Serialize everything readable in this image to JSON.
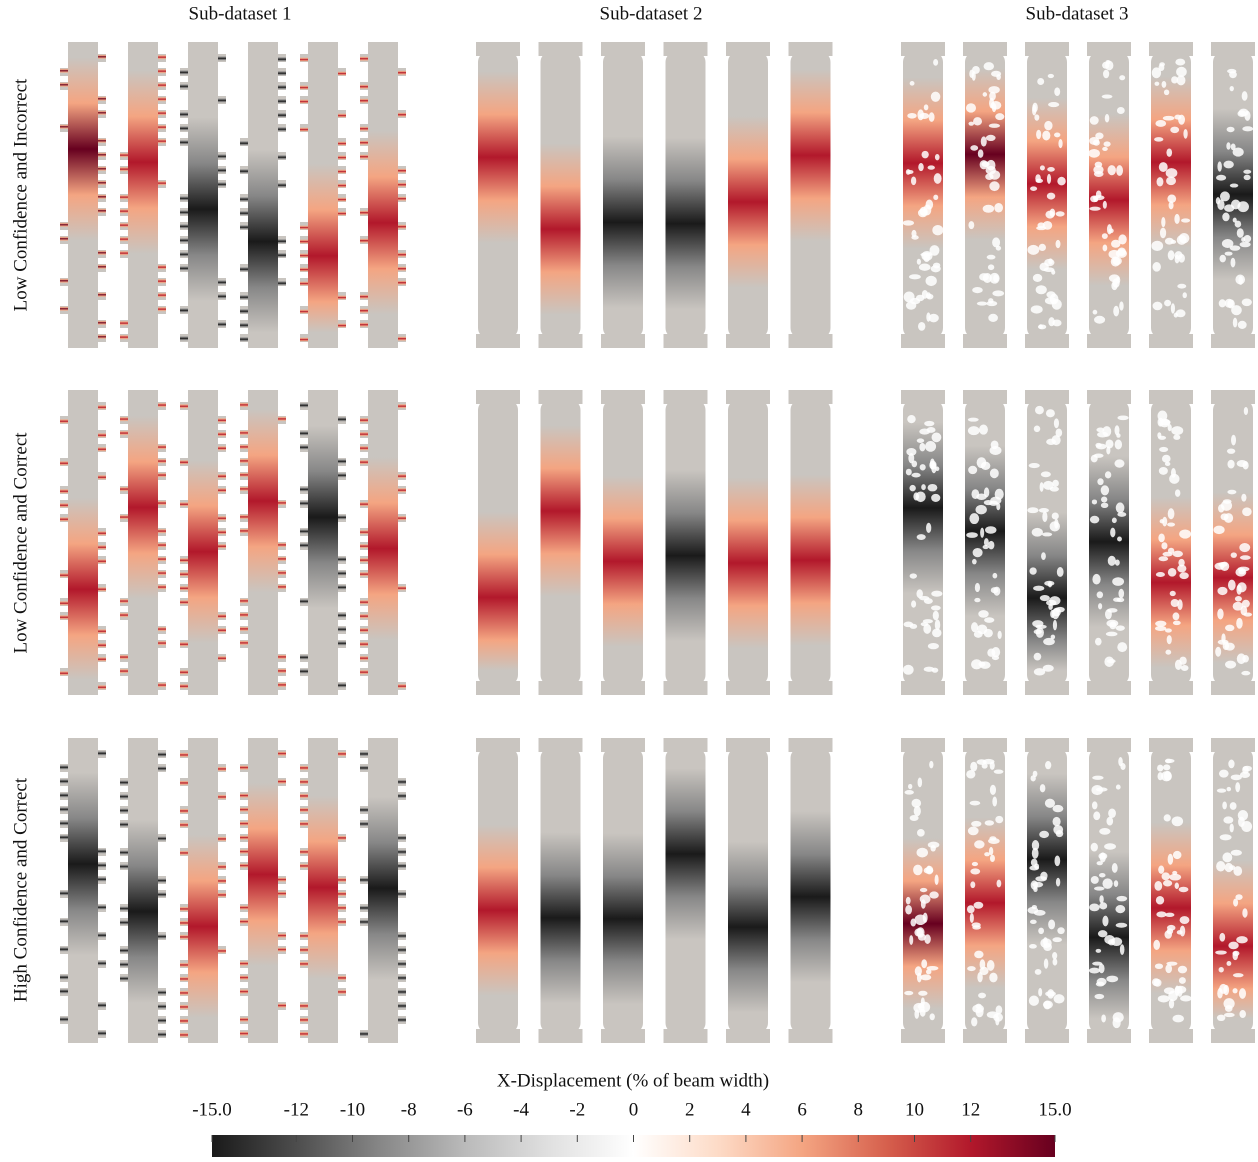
{
  "chart_data": {
    "type": "colorbar",
    "title": "X-Displacement (% of beam width)",
    "xlim": [
      -15,
      15
    ],
    "xticks": [
      {
        "value": -15,
        "label": "-15.0"
      },
      -12,
      -10,
      -8,
      -6,
      -4,
      -2,
      0,
      2,
      4,
      6,
      8,
      10,
      12,
      {
        "value": 15,
        "label": "15.0"
      }
    ],
    "colors": [
      "#1a1a1a",
      "#4d4d4d",
      "#878787",
      "#bababa",
      "#e0e0e0",
      "#ffffff",
      "#fddbc7",
      "#f4a582",
      "#d6604d",
      "#b2182b",
      "#67001f"
    ]
  },
  "columns": [
    "Sub-dataset 1",
    "Sub-dataset 2",
    "Sub-dataset 3"
  ],
  "rows": [
    "Low Confidence and Incorrect",
    "Low Confidence and Correct",
    "High Confidence and Correct"
  ]
}
